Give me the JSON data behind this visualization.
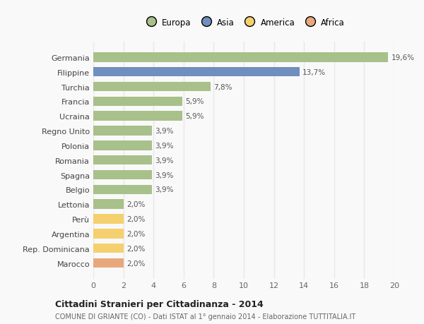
{
  "countries": [
    "Germania",
    "Filippine",
    "Turchia",
    "Francia",
    "Ucraina",
    "Regno Unito",
    "Polonia",
    "Romania",
    "Spagna",
    "Belgio",
    "Lettonia",
    "Perù",
    "Argentina",
    "Rep. Dominicana",
    "Marocco"
  ],
  "values": [
    19.6,
    13.7,
    7.8,
    5.9,
    5.9,
    3.9,
    3.9,
    3.9,
    3.9,
    3.9,
    2.0,
    2.0,
    2.0,
    2.0,
    2.0
  ],
  "labels": [
    "19,6%",
    "13,7%",
    "7,8%",
    "5,9%",
    "5,9%",
    "3,9%",
    "3,9%",
    "3,9%",
    "3,9%",
    "3,9%",
    "2,0%",
    "2,0%",
    "2,0%",
    "2,0%",
    "2,0%"
  ],
  "colors": [
    "#a8c08a",
    "#6f8fbe",
    "#a8c08a",
    "#a8c08a",
    "#a8c08a",
    "#a8c08a",
    "#a8c08a",
    "#a8c08a",
    "#a8c08a",
    "#a8c08a",
    "#a8c08a",
    "#f5d06e",
    "#f5d06e",
    "#f5d06e",
    "#e8a87c"
  ],
  "legend_labels": [
    "Europa",
    "Asia",
    "America",
    "Africa"
  ],
  "legend_colors": [
    "#a8c08a",
    "#6f8fbe",
    "#f5d06e",
    "#e8a87c"
  ],
  "xlim": [
    0,
    20
  ],
  "xticks": [
    0,
    2,
    4,
    6,
    8,
    10,
    12,
    14,
    16,
    18,
    20
  ],
  "title": "Cittadini Stranieri per Cittadinanza - 2014",
  "subtitle": "COMUNE DI GRIANTE (CO) - Dati ISTAT al 1° gennaio 2014 - Elaborazione TUTTITALIA.IT",
  "background_color": "#f9f9f9",
  "grid_color": "#e8e8e8",
  "bar_height": 0.65
}
